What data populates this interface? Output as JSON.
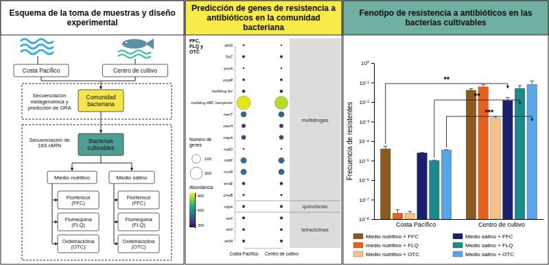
{
  "diagram": {
    "title": "Esquema de la toma de muestras y diseño experimental",
    "sources": [
      "Costa Pacífico",
      "Centro de cultivo"
    ],
    "community": "Comunidad bacteriana",
    "metagenomics": "Secuenciación metagenómica y predicción de GRA",
    "cultivable": "Bacterias cultivables",
    "sequencing": "Secuenciación de 16S rARN",
    "media": [
      "Medio nutritivo",
      "Medio salino"
    ],
    "antibiotics": [
      "Florfenicol (FFC)",
      "Flumequina (FLQ)",
      "Oxitetraciclina (OTC)"
    ]
  },
  "chart_data": [
    {
      "type": "bubble",
      "title": "Predicción de genes de resistencia a antibióticos en la comunidad bacteriana",
      "annotation": "FFC, FLQ y OTC",
      "categories": [
        "ykkD",
        "TolC",
        "pmrA",
        "ompR",
        "multidrug bcr",
        "multidrug ABC transporter",
        "mexT",
        "mexH",
        "mepA",
        "mdtO",
        "mdtK",
        "msrR",
        "emrE",
        "cmeB",
        "mfpA",
        "tetX",
        "tetV",
        "tet34"
      ],
      "groups": [
        {
          "name": "multidrogas",
          "members": [
            "ykkD",
            "TolC",
            "pmrA",
            "ompR",
            "multidrug bcr",
            "multidrug ABC transporter",
            "mexT",
            "mexH",
            "mepA",
            "mdtO",
            "mdtK",
            "msrR",
            "emrE",
            "cmeB"
          ]
        },
        {
          "name": "quinolonas",
          "members": [
            "mfpA"
          ]
        },
        {
          "name": "tetraciclinas",
          "members": [
            "tetX",
            "tetV",
            "tet34"
          ]
        }
      ],
      "series": [
        {
          "name": "Costa Pacífico",
          "sizes": [
            4,
            10,
            3,
            8,
            12,
            250,
            40,
            20,
            25,
            3,
            45,
            45,
            12,
            5,
            10,
            10,
            8,
            10
          ],
          "values": [
            290,
            310,
            280,
            300,
            320,
            920,
            480,
            360,
            400,
            280,
            500,
            500,
            320,
            290,
            310,
            310,
            300,
            310
          ]
        },
        {
          "name": "Centro de cultivo",
          "sizes": [
            3,
            10,
            3,
            8,
            12,
            230,
            40,
            20,
            25,
            3,
            45,
            45,
            12,
            5,
            10,
            10,
            8,
            10
          ],
          "values": [
            285,
            305,
            280,
            295,
            315,
            870,
            470,
            350,
            390,
            280,
            490,
            490,
            315,
            285,
            305,
            305,
            295,
            305
          ]
        }
      ],
      "size_legend": {
        "title": "Número de genes",
        "ticks": [
          100,
          200
        ]
      },
      "colorbar": {
        "title": "Abundancia",
        "range": [
          250,
          950
        ],
        "ticks": [
          300,
          600,
          900
        ]
      }
    },
    {
      "type": "bar",
      "title": "Fenotipo de resistencia a antibióticos en las bacterias cultivables",
      "y_label": "Frecuencia de resistentes",
      "log": "y",
      "legend": "bottom",
      "categories": [
        "Costa Pacífico",
        "Centro de cultivo"
      ],
      "ylim": [
        1e-08,
        1
      ],
      "yticks": [
        {
          "value": 1,
          "label": "10⁰"
        },
        {
          "value": 0.1,
          "label": "10⁻¹"
        },
        {
          "value": 0.01,
          "label": "10⁻²"
        },
        {
          "value": 0.001,
          "label": "10⁻³"
        },
        {
          "value": 0.0001,
          "label": "10⁻⁴"
        },
        {
          "value": 1e-05,
          "label": "10⁻⁵"
        },
        {
          "value": 1e-06,
          "label": "10⁻⁶"
        },
        {
          "value": 1e-07,
          "label": "10⁻⁷"
        },
        {
          "value": 1e-08,
          "label": "10⁻⁸"
        }
      ],
      "series": [
        {
          "name": "Medio nutritivo + FFC",
          "color": "#8b5a1e",
          "values": [
            4e-05,
            0.04
          ],
          "errors": [
            1.5e-05,
            0.008
          ]
        },
        {
          "name": "medio nutritivo + FLQ",
          "color": "#e8601c",
          "values": [
            2e-08,
            0.06
          ],
          "errors": [
            1e-08,
            0.02
          ]
        },
        {
          "name": "Medio nutritivo + OTC",
          "color": "#f5c08a",
          "values": [
            2e-08,
            0.0015
          ],
          "errors": [
            5e-09,
            0.0003
          ]
        },
        {
          "name": "Medio salino + FFC",
          "color": "#1a1f6e",
          "values": [
            2.5e-05,
            0.012
          ],
          "errors": [
            1e-06,
            0.005
          ]
        },
        {
          "name": "Medio salino + FLQ",
          "color": "#1a8a8a",
          "values": [
            1e-05,
            0.05
          ],
          "errors": [
            5e-07,
            0.02
          ]
        },
        {
          "name": "Medio salino + OTC",
          "color": "#5aa5e8",
          "values": [
            3.5e-05,
            0.08
          ],
          "errors": [
            1e-06,
            0.04
          ]
        }
      ],
      "annotations": [
        {
          "text": "**",
          "from": [
            "Costa Pacífico",
            "Medio nutritivo + FFC"
          ],
          "to": [
            "Centro de cultivo",
            "Medio salino + FFC"
          ]
        },
        {
          "text": "**",
          "from": [
            "Costa Pacífico",
            "Medio salino + FLQ"
          ],
          "to": [
            "Centro de cultivo",
            "Medio salino + FLQ"
          ]
        },
        {
          "text": "***",
          "from": [
            "Costa Pacífico",
            "Medio salino + OTC"
          ],
          "to": [
            "Centro de cultivo",
            "Medio salino + OTC"
          ]
        }
      ]
    }
  ]
}
